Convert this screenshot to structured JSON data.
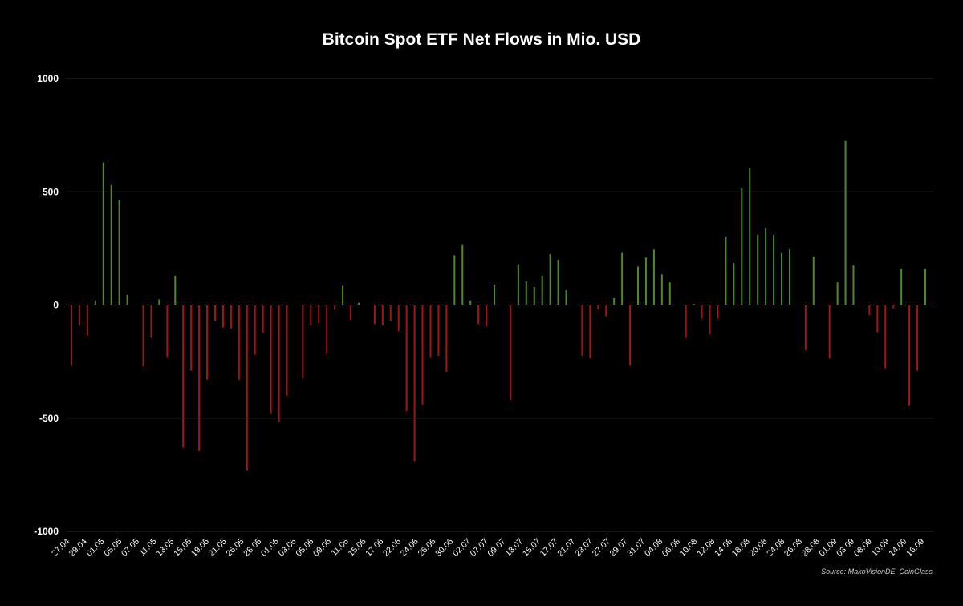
{
  "chart_data": {
    "type": "bar",
    "title": "Bitcoin Spot ETF Net Flows in Mio. USD",
    "source": "Source: MakoVisionDE, CoinGlass",
    "ylim": [
      -1000,
      1000
    ],
    "yticks": [
      1000,
      500,
      0,
      -500,
      -1000
    ],
    "ytick_labels": [
      "1000",
      "500",
      "0",
      "-500",
      "-1000"
    ],
    "grid": true,
    "colors": {
      "positive": "#4e8a2b",
      "negative": "#a31515",
      "grid": "#2b2b2b",
      "axis": "#9a9a9a"
    },
    "tick_labels": [
      "27.04",
      "29.04",
      "01.05",
      "05.05",
      "07.05",
      "11.05",
      "13.05",
      "15.05",
      "19.05",
      "21.05",
      "26.05",
      "28.05",
      "01.06",
      "03.06",
      "05.06",
      "09.06",
      "11.06",
      "15.06",
      "17.06",
      "22.06",
      "24.06",
      "26.06",
      "30.06",
      "02.07",
      "07.07",
      "09.07",
      "13.07",
      "15.07",
      "17.07",
      "21.07",
      "23.07",
      "27.07",
      "29.07",
      "31.07",
      "04.08",
      "06.08",
      "10.08",
      "12.08",
      "14.08",
      "18.08",
      "20.08",
      "24.08",
      "26.08",
      "28.08",
      "01.09",
      "03.09",
      "08.09",
      "10.09",
      "14.09",
      "16.09"
    ],
    "values": [
      -265,
      -90,
      -135,
      20,
      630,
      530,
      465,
      45,
      0,
      -270,
      -145,
      25,
      -230,
      130,
      -630,
      -290,
      -645,
      -330,
      -70,
      -100,
      -105,
      -330,
      -730,
      -220,
      -125,
      -480,
      -515,
      -400,
      0,
      -325,
      -90,
      -80,
      -215,
      -20,
      85,
      -65,
      10,
      0,
      -85,
      -90,
      -70,
      -115,
      -470,
      -690,
      -440,
      -230,
      -225,
      -295,
      220,
      265,
      20,
      -85,
      -95,
      90,
      0,
      -420,
      180,
      105,
      80,
      130,
      225,
      200,
      65,
      0,
      -225,
      -235,
      -20,
      -50,
      30,
      230,
      -265,
      170,
      210,
      245,
      135,
      100,
      0,
      -145,
      5,
      -60,
      -130,
      -60,
      300,
      185,
      515,
      605,
      310,
      340,
      310,
      230,
      245,
      0,
      -200,
      215,
      0,
      -235,
      100,
      725,
      175,
      0,
      -45,
      -120,
      -280,
      -15,
      160,
      -445,
      -290,
      160
    ]
  }
}
